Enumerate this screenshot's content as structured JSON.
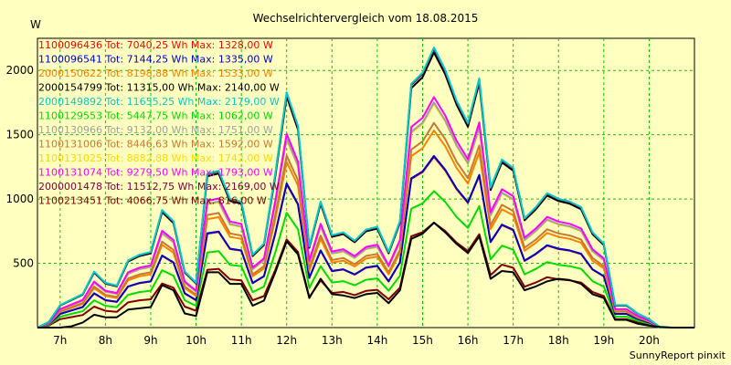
{
  "chart_data": {
    "type": "line",
    "title": "Wechselrichtervergleich vom 18.08.2015",
    "ylabel": "W",
    "xlabel": "",
    "footer": "SunnyReport pinxit",
    "grid": true,
    "legend_position": "top-left",
    "xlim": [
      6.5,
      21.0
    ],
    "ylim": [
      0,
      2250
    ],
    "yticks": [
      500,
      1000,
      1500,
      2000
    ],
    "xticks": [
      {
        "value": 7,
        "label": "7h"
      },
      {
        "value": 8,
        "label": "8h"
      },
      {
        "value": 9,
        "label": "9h"
      },
      {
        "value": 10,
        "label": "10h"
      },
      {
        "value": 11,
        "label": "11h"
      },
      {
        "value": 12,
        "label": "12h"
      },
      {
        "value": 13,
        "label": "13h"
      },
      {
        "value": 14,
        "label": "14h"
      },
      {
        "value": 15,
        "label": "15h"
      },
      {
        "value": 16,
        "label": "16h"
      },
      {
        "value": 17,
        "label": "17h"
      },
      {
        "value": 18,
        "label": "18h"
      },
      {
        "value": 19,
        "label": "19h"
      },
      {
        "value": 20,
        "label": "20h"
      }
    ],
    "x": [
      6.5,
      6.75,
      7.0,
      7.25,
      7.5,
      7.75,
      8.0,
      8.25,
      8.5,
      8.75,
      9.0,
      9.25,
      9.5,
      9.75,
      10.0,
      10.25,
      10.5,
      10.75,
      11.0,
      11.25,
      11.5,
      11.75,
      12.0,
      12.25,
      12.5,
      12.75,
      13.0,
      13.25,
      13.5,
      13.75,
      14.0,
      14.25,
      14.5,
      14.75,
      15.0,
      15.25,
      15.5,
      15.75,
      16.0,
      16.25,
      16.5,
      16.75,
      17.0,
      17.25,
      17.5,
      17.75,
      18.0,
      18.25,
      18.5,
      18.75,
      19.0,
      19.25,
      19.5,
      19.75,
      20.0,
      20.25,
      20.5,
      20.75,
      21.0
    ],
    "reference_shape": [
      0,
      0.02,
      0.08,
      0.1,
      0.12,
      0.2,
      0.16,
      0.15,
      0.24,
      0.26,
      0.27,
      0.42,
      0.38,
      0.2,
      0.16,
      0.55,
      0.56,
      0.46,
      0.45,
      0.26,
      0.3,
      0.55,
      0.84,
      0.72,
      0.29,
      0.45,
      0.33,
      0.34,
      0.31,
      0.35,
      0.36,
      0.27,
      0.38,
      0.87,
      0.91,
      1.0,
      0.92,
      0.81,
      0.73,
      0.89,
      0.5,
      0.6,
      0.57,
      0.39,
      0.43,
      0.48,
      0.46,
      0.45,
      0.43,
      0.34,
      0.3,
      0.08,
      0.08,
      0.05,
      0.03,
      0.0,
      0,
      0,
      0
    ],
    "series": [
      {
        "name": "1100096436 Tot: 7040,25 Wh Max: 1328,00 W",
        "color": "#ff0000",
        "max": 1328
      },
      {
        "name": "1100096541 Tot: 7144,25 Wh Max: 1335,00 W",
        "color": "#0000cc",
        "max": 1335
      },
      {
        "name": "2000150622 Tot: 8198,88 Wh Max: 1533,00 W",
        "color": "#ff8000",
        "max": 1533
      },
      {
        "name": "2000154799 Tot: 11315,00 Wh Max: 2140,00 W",
        "color": "#000000",
        "max": 2140
      },
      {
        "name": "2000149892 Tot: 11655,25 Wh Max: 2179,00 W",
        "color": "#00cccc",
        "max": 2179
      },
      {
        "name": "1100129553 Tot: 5447,75 Wh Max: 1062,00 W",
        "color": "#00dd00",
        "max": 1062
      },
      {
        "name": "1100130966 Tot: 9132,00 Wh Max: 1751,00 W",
        "color": "#a0a0a0",
        "max": 1751
      },
      {
        "name": "1100131006 Tot: 8446,63 Wh Max: 1592,00 W",
        "color": "#c87830",
        "max": 1592
      },
      {
        "name": "1100131025 Tot: 8882,88 Wh Max: 1742,00 W",
        "color": "#ffd800",
        "max": 1742
      },
      {
        "name": "1100131074 Tot: 9279,50 Wh Max: 1793,00 W",
        "color": "#ff00ff",
        "max": 1793
      },
      {
        "name": "2000001478 Tot: 11512,75 Wh Max: 2169,00 W",
        "color": "#800040",
        "max": 2169
      },
      {
        "name": "1100213451 Tot: 4066,75 Wh Max: 816,00 W",
        "color": "#800000",
        "max": 816
      }
    ],
    "black_line": {
      "color": "#000000",
      "values": [
        0,
        0,
        0,
        10,
        40,
        100,
        80,
        80,
        140,
        150,
        160,
        330,
        290,
        110,
        90,
        430,
        430,
        340,
        340,
        170,
        210,
        430,
        670,
        570,
        230,
        380,
        260,
        250,
        230,
        260,
        270,
        190,
        290,
        690,
        730,
        816,
        740,
        650,
        580,
        710,
        380,
        440,
        430,
        290,
        320,
        360,
        380,
        370,
        340,
        260,
        230,
        60,
        60,
        30,
        15,
        5,
        0,
        0,
        0
      ]
    }
  }
}
